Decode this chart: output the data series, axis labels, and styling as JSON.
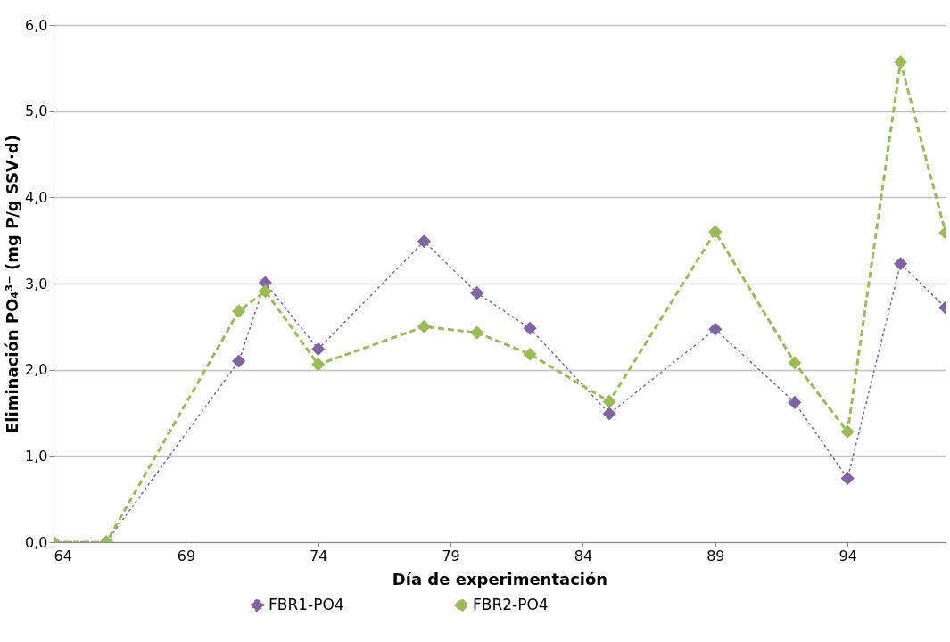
{
  "chart_data": {
    "type": "line",
    "xlabel": "Día de experimentación",
    "ylabel": "Eliminación PO₄³⁻ (mg P/g SSV·d)",
    "x": [
      64,
      66,
      71,
      72,
      74,
      78,
      80,
      82,
      85,
      89,
      92,
      94,
      96,
      97.7
    ],
    "series": [
      {
        "name": "FBR1-PO4",
        "color": "#8064a2",
        "line_style": "dotted",
        "values": [
          0,
          0,
          2.1,
          3.01,
          2.24,
          3.49,
          2.89,
          2.48,
          1.49,
          2.47,
          1.62,
          0.74,
          3.23,
          2.72
        ]
      },
      {
        "name": "FBR2-PO4",
        "color": "#9bbb59",
        "line_style": "dashed",
        "values": [
          0,
          0,
          2.68,
          2.91,
          2.06,
          2.5,
          2.43,
          2.18,
          1.63,
          3.6,
          2.08,
          1.28,
          5.57,
          3.59
        ]
      }
    ],
    "xlim": [
      64,
      97.7
    ],
    "xticks": [
      64,
      69,
      74,
      79,
      84,
      89,
      94
    ],
    "ylim": [
      0,
      6
    ],
    "yticks": [
      {
        "value": 0,
        "label": "0,0"
      },
      {
        "value": 1,
        "label": "1,0"
      },
      {
        "value": 2,
        "label": "2,0"
      },
      {
        "value": 3,
        "label": "3,0"
      },
      {
        "value": 4,
        "label": "4,0"
      },
      {
        "value": 5,
        "label": "5,0"
      },
      {
        "value": 6,
        "label": "6,0"
      }
    ],
    "grid": "y",
    "legend": "bottom",
    "marker": "diamond"
  }
}
